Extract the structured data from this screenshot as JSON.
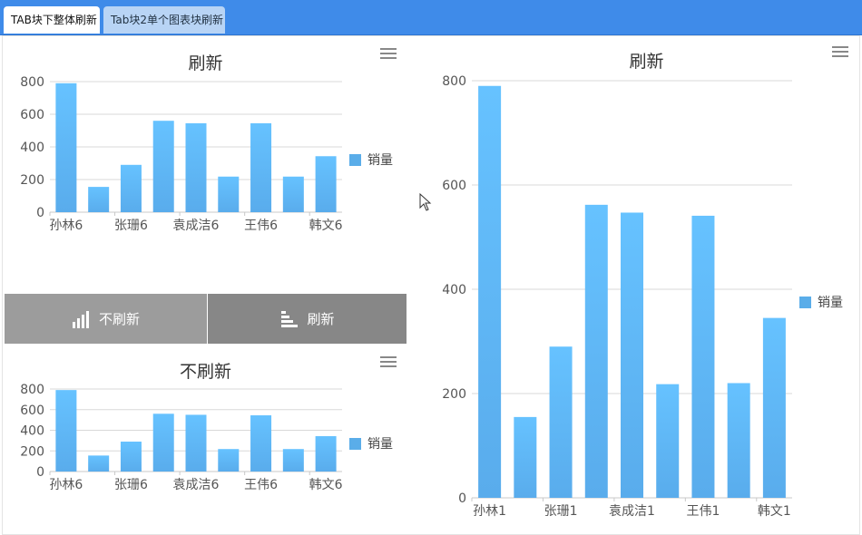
{
  "tabs": [
    {
      "label": "TAB块下整体刷新",
      "active": true
    },
    {
      "label": "Tab块2单个图表块刷新",
      "active": false
    }
  ],
  "buttons": {
    "no_refresh_label": "不刷新",
    "refresh_label": "刷新"
  },
  "colors": {
    "tab_bar": "#3f8be9",
    "bar_top": "#66c2ff",
    "bar_bottom": "#59acec",
    "legend": "#5aade9",
    "button_left": "#9c9c9c",
    "button_right": "#878787"
  },
  "chart_data": [
    {
      "type": "bar",
      "title": "刷新",
      "categories": [
        "孙林6",
        "",
        "张珊6",
        "",
        "袁成洁6",
        "",
        "王伟6",
        "",
        "韩文6"
      ],
      "series": [
        {
          "name": "销量",
          "values": [
            790,
            155,
            290,
            560,
            545,
            218,
            545,
            218,
            343
          ]
        }
      ],
      "ylim": [
        0,
        800
      ],
      "yticks": [
        0,
        200,
        400,
        600,
        800
      ],
      "legend": "right",
      "grid": true
    },
    {
      "type": "bar",
      "title": "不刷新",
      "categories": [
        "孙林6",
        "",
        "张珊6",
        "",
        "袁成洁6",
        "",
        "王伟6",
        "",
        "韩文6"
      ],
      "series": [
        {
          "name": "销量",
          "values": [
            790,
            155,
            290,
            560,
            550,
            218,
            545,
            218,
            343
          ]
        }
      ],
      "ylim": [
        0,
        800
      ],
      "yticks": [
        0,
        200,
        400,
        600,
        800
      ],
      "legend": "right",
      "grid": true
    },
    {
      "type": "bar",
      "title": "刷新",
      "categories": [
        "孙林1",
        "",
        "张珊1",
        "",
        "袁成洁1",
        "",
        "王伟1",
        "",
        "韩文1"
      ],
      "series": [
        {
          "name": "销量",
          "values": [
            790,
            155,
            290,
            562,
            547,
            218,
            541,
            220,
            345
          ]
        }
      ],
      "ylim": [
        0,
        800
      ],
      "yticks": [
        0,
        200,
        400,
        600,
        800
      ],
      "legend": "right",
      "grid": true
    }
  ]
}
